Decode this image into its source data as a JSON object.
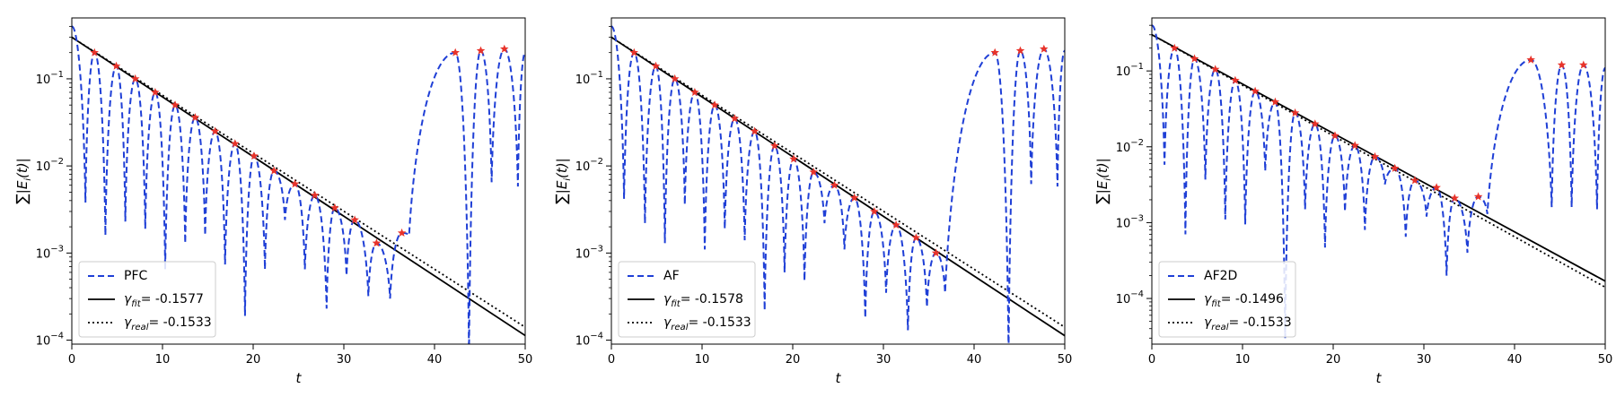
{
  "colors": {
    "data_line": "#1f3fd6",
    "fit_line": "#000000",
    "real_line": "#000000",
    "peak_marker": "#e8332a"
  },
  "chart_data": [
    {
      "type": "line",
      "yscale": "log",
      "xlim": [
        0,
        50
      ],
      "ylim": [
        9e-05,
        0.5
      ],
      "xlabel": "t",
      "ylabel": "∑|E_i(t)|",
      "xticks": [
        "0",
        "10",
        "20",
        "30",
        "40",
        "50"
      ],
      "yticks": [
        {
          "value": 0.1,
          "base": "10",
          "exp": "−1"
        },
        {
          "value": 0.01,
          "base": "10",
          "exp": "−2"
        },
        {
          "value": 0.001,
          "base": "10",
          "exp": "−3"
        },
        {
          "value": 0.0001,
          "base": "10",
          "exp": "−4"
        }
      ],
      "legend": {
        "position": "lower-left",
        "data_label": "PFC",
        "fit_value": "= -0.1577",
        "real_value": "= -0.1533"
      },
      "fit": {
        "A": 0.3,
        "gamma": -0.1577
      },
      "real": {
        "A": 0.3,
        "gamma": -0.1533
      },
      "peaks": [
        [
          2.5,
          0.2
        ],
        [
          4.9,
          0.14
        ],
        [
          7.0,
          0.1
        ],
        [
          9.2,
          0.07
        ],
        [
          11.4,
          0.05
        ],
        [
          13.6,
          0.036
        ],
        [
          15.8,
          0.025
        ],
        [
          18.0,
          0.018
        ],
        [
          20.1,
          0.013
        ],
        [
          22.3,
          0.0088
        ],
        [
          24.6,
          0.0062
        ],
        [
          26.8,
          0.0046
        ],
        [
          29.0,
          0.0033
        ],
        [
          31.2,
          0.0024
        ],
        [
          33.6,
          0.0013
        ],
        [
          36.4,
          0.0017
        ],
        [
          42.3,
          0.2
        ],
        [
          45.1,
          0.21
        ],
        [
          47.7,
          0.22
        ]
      ],
      "troughs": [
        [
          1.5,
          0.0038
        ],
        [
          3.7,
          0.0016
        ],
        [
          5.9,
          0.0023
        ],
        [
          8.1,
          0.0019
        ],
        [
          10.3,
          0.00065
        ],
        [
          12.5,
          0.0013
        ],
        [
          14.7,
          0.0016
        ],
        [
          16.9,
          0.00074
        ],
        [
          19.1,
          0.00019
        ],
        [
          21.3,
          0.00065
        ],
        [
          23.5,
          0.0024
        ],
        [
          25.7,
          0.00065
        ],
        [
          28.1,
          0.00023
        ],
        [
          30.3,
          0.00055
        ],
        [
          32.7,
          0.00032
        ],
        [
          35.1,
          0.0003
        ],
        [
          43.8,
          7e-05
        ],
        [
          46.3,
          0.0065
        ],
        [
          49.2,
          0.0058
        ]
      ],
      "series": [
        {
          "name": "PFC",
          "style": "dashed",
          "x": [
            0,
            1.5,
            2.5,
            3.7,
            4.9,
            5.9,
            7.0,
            8.1,
            9.2,
            10.3,
            11.4,
            12.5,
            13.6,
            14.7,
            15.8,
            16.9,
            18.0,
            19.1,
            20.1,
            21.3,
            22.3,
            23.5,
            24.6,
            25.7,
            26.8,
            28.1,
            29.0,
            30.3,
            31.2,
            32.7,
            33.6,
            35.1,
            36.4,
            37.2,
            42.3,
            43.8,
            45.1,
            46.3,
            47.7,
            49.2,
            50
          ],
          "y": [
            0.4,
            0.0038,
            0.2,
            0.0016,
            0.14,
            0.0023,
            0.1,
            0.0019,
            0.07,
            0.00065,
            0.05,
            0.0013,
            0.036,
            0.0016,
            0.025,
            0.00074,
            0.018,
            0.00019,
            0.013,
            0.00065,
            0.0088,
            0.0024,
            0.0062,
            0.00065,
            0.0046,
            0.00023,
            0.0033,
            0.00055,
            0.0024,
            0.00032,
            0.0013,
            0.0003,
            0.0017,
            0.0016,
            0.2,
            7e-05,
            0.21,
            0.0065,
            0.22,
            0.0058,
            0.2
          ]
        }
      ]
    },
    {
      "type": "line",
      "yscale": "log",
      "xlim": [
        0,
        50
      ],
      "ylim": [
        9e-05,
        0.5
      ],
      "xlabel": "t",
      "ylabel": "∑|E_i(t)|",
      "xticks": [
        "0",
        "10",
        "20",
        "30",
        "40",
        "50"
      ],
      "yticks": [
        {
          "value": 0.1,
          "base": "10",
          "exp": "−1"
        },
        {
          "value": 0.01,
          "base": "10",
          "exp": "−2"
        },
        {
          "value": 0.001,
          "base": "10",
          "exp": "−3"
        },
        {
          "value": 0.0001,
          "base": "10",
          "exp": "−4"
        }
      ],
      "legend": {
        "position": "lower-left",
        "data_label": "AF",
        "fit_value": "= -0.1578",
        "real_value": "= -0.1533"
      },
      "fit": {
        "A": 0.3,
        "gamma": -0.1578
      },
      "real": {
        "A": 0.3,
        "gamma": -0.1533
      },
      "peaks": [
        [
          2.5,
          0.2
        ],
        [
          4.9,
          0.14
        ],
        [
          7.0,
          0.1
        ],
        [
          9.2,
          0.07
        ],
        [
          11.4,
          0.05
        ],
        [
          13.6,
          0.035
        ],
        [
          15.8,
          0.025
        ],
        [
          18.0,
          0.017
        ],
        [
          20.1,
          0.012
        ],
        [
          22.3,
          0.0085
        ],
        [
          24.6,
          0.006
        ],
        [
          26.8,
          0.0043
        ],
        [
          29.0,
          0.003
        ],
        [
          31.4,
          0.0021
        ],
        [
          33.6,
          0.0015
        ],
        [
          35.8,
          0.001
        ],
        [
          42.3,
          0.2
        ],
        [
          45.1,
          0.21
        ],
        [
          47.7,
          0.22
        ]
      ],
      "troughs": [
        [
          1.4,
          0.0042
        ],
        [
          3.7,
          0.0022
        ],
        [
          5.9,
          0.0013
        ],
        [
          8.1,
          0.0036
        ],
        [
          10.3,
          0.0011
        ],
        [
          12.5,
          0.0019
        ],
        [
          14.7,
          0.0014
        ],
        [
          16.9,
          0.00022
        ],
        [
          19.1,
          0.0006
        ],
        [
          21.3,
          0.00048
        ],
        [
          23.5,
          0.0022
        ],
        [
          25.7,
          0.0011
        ],
        [
          28.0,
          0.00018
        ],
        [
          30.3,
          0.00035
        ],
        [
          32.7,
          0.00013
        ],
        [
          34.8,
          0.00024
        ],
        [
          36.8,
          0.00035
        ],
        [
          43.8,
          7e-05
        ],
        [
          46.3,
          0.0062
        ],
        [
          49.2,
          0.0058
        ]
      ],
      "series": [
        {
          "name": "AF",
          "style": "dashed",
          "x": [
            0,
            1.4,
            2.5,
            3.7,
            4.9,
            5.9,
            7.0,
            8.1,
            9.2,
            10.3,
            11.4,
            12.5,
            13.6,
            14.7,
            15.8,
            16.9,
            18.0,
            19.1,
            20.1,
            21.3,
            22.3,
            23.5,
            24.6,
            25.7,
            26.8,
            28.0,
            29.0,
            30.3,
            31.4,
            32.7,
            33.6,
            34.8,
            35.8,
            36.8,
            42.3,
            43.8,
            45.1,
            46.3,
            47.7,
            49.2,
            50
          ],
          "y": [
            0.4,
            0.0042,
            0.2,
            0.0022,
            0.14,
            0.0013,
            0.1,
            0.0036,
            0.07,
            0.0011,
            0.05,
            0.0019,
            0.035,
            0.0014,
            0.025,
            0.00022,
            0.017,
            0.0006,
            0.012,
            0.00048,
            0.0085,
            0.0022,
            0.006,
            0.0011,
            0.0043,
            0.00018,
            0.003,
            0.00035,
            0.0021,
            0.00013,
            0.0015,
            0.00024,
            0.001,
            0.00035,
            0.2,
            7e-05,
            0.21,
            0.0062,
            0.22,
            0.0058,
            0.21
          ]
        }
      ]
    },
    {
      "type": "line",
      "yscale": "log",
      "xlim": [
        0,
        50
      ],
      "ylim": [
        2.5e-05,
        0.5
      ],
      "xlabel": "t",
      "ylabel": "∑|E_i(t)|",
      "xticks": [
        "0",
        "10",
        "20",
        "30",
        "40",
        "50"
      ],
      "yticks": [
        {
          "value": 0.1,
          "base": "10",
          "exp": "−1"
        },
        {
          "value": 0.01,
          "base": "10",
          "exp": "−2"
        },
        {
          "value": 0.001,
          "base": "10",
          "exp": "−3"
        },
        {
          "value": 0.0001,
          "base": "10",
          "exp": "−4"
        }
      ],
      "legend": {
        "position": "lower-left",
        "data_label": "AF2D",
        "fit_value": "= -0.1496",
        "real_value": "= -0.1533"
      },
      "fit": {
        "A": 0.3,
        "gamma": -0.1496
      },
      "real": {
        "A": 0.3,
        "gamma": -0.1533
      },
      "peaks": [
        [
          2.5,
          0.2
        ],
        [
          4.7,
          0.145
        ],
        [
          7.0,
          0.105
        ],
        [
          9.2,
          0.075
        ],
        [
          11.4,
          0.054
        ],
        [
          13.6,
          0.039
        ],
        [
          15.8,
          0.028
        ],
        [
          18.0,
          0.02
        ],
        [
          20.2,
          0.014
        ],
        [
          22.4,
          0.0104
        ],
        [
          24.6,
          0.0074
        ],
        [
          26.8,
          0.0052
        ],
        [
          29.0,
          0.0036
        ],
        [
          31.4,
          0.0029
        ],
        [
          33.4,
          0.0021
        ],
        [
          36.0,
          0.0022
        ],
        [
          41.8,
          0.14
        ],
        [
          45.2,
          0.12
        ],
        [
          47.6,
          0.12
        ]
      ],
      "troughs": [
        [
          1.4,
          0.0058
        ],
        [
          3.7,
          0.0007
        ],
        [
          5.9,
          0.0037
        ],
        [
          8.1,
          0.0011
        ],
        [
          10.3,
          0.00095
        ],
        [
          12.5,
          0.0048
        ],
        [
          14.7,
          3e-05
        ],
        [
          16.9,
          0.0015
        ],
        [
          19.1,
          0.00047
        ],
        [
          21.3,
          0.0014
        ],
        [
          23.5,
          0.0008
        ],
        [
          25.7,
          0.0032
        ],
        [
          28.0,
          0.00065
        ],
        [
          30.3,
          0.0012
        ],
        [
          32.5,
          0.0002
        ],
        [
          34.8,
          0.0004
        ],
        [
          37.0,
          0.0013
        ],
        [
          44.1,
          0.0016
        ],
        [
          46.3,
          0.0016
        ],
        [
          49.1,
          0.0015
        ]
      ],
      "series": [
        {
          "name": "AF2D",
          "style": "dashed",
          "x": [
            0,
            1.4,
            2.5,
            3.7,
            4.7,
            5.9,
            7.0,
            8.1,
            9.2,
            10.3,
            11.4,
            12.5,
            13.6,
            14.7,
            15.8,
            16.9,
            18.0,
            19.1,
            20.2,
            21.3,
            22.4,
            23.5,
            24.6,
            25.7,
            26.8,
            28.0,
            29.0,
            30.3,
            31.4,
            32.5,
            33.4,
            34.8,
            36.0,
            37.0,
            41.8,
            44.1,
            45.2,
            46.3,
            47.6,
            49.1,
            50
          ],
          "y": [
            0.4,
            0.0058,
            0.2,
            0.0007,
            0.145,
            0.0037,
            0.105,
            0.0011,
            0.075,
            0.00095,
            0.054,
            0.0048,
            0.039,
            3e-05,
            0.028,
            0.0015,
            0.02,
            0.00047,
            0.014,
            0.0014,
            0.0104,
            0.0008,
            0.0074,
            0.0032,
            0.0052,
            0.00065,
            0.0036,
            0.0012,
            0.0029,
            0.0002,
            0.0021,
            0.0004,
            0.0022,
            0.0013,
            0.14,
            0.0016,
            0.12,
            0.0016,
            0.12,
            0.0015,
            0.11
          ]
        }
      ]
    }
  ]
}
